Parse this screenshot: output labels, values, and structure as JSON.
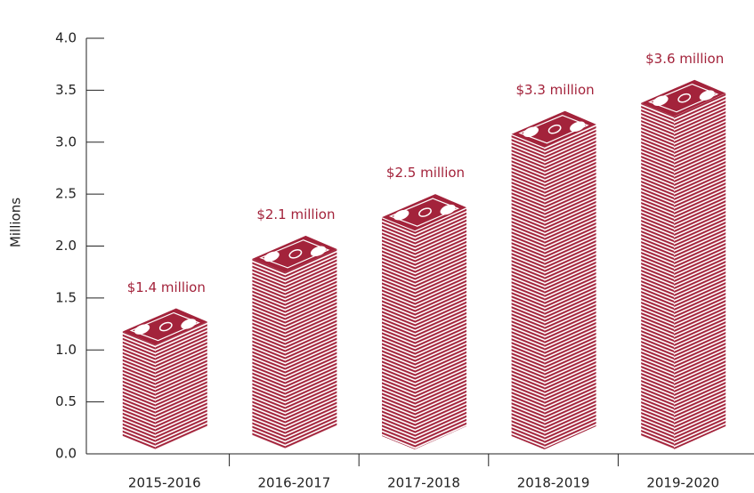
{
  "chart_data": {
    "type": "bar",
    "y_label": "Millions",
    "categories": [
      "2015-2016",
      "2016-2017",
      "2017-2018",
      "2018-2019",
      "2019-2020"
    ],
    "values": [
      1.4,
      2.1,
      2.5,
      3.3,
      3.6
    ],
    "value_labels": [
      "$1.4 million",
      "$2.1 million",
      "$2.5 million",
      "$3.3 million",
      "$3.6 million"
    ],
    "color": "#a3233b",
    "ylim": [
      0,
      4
    ],
    "yticks": [
      {
        "value": 0,
        "label": "0.0"
      },
      {
        "value": 0.5,
        "label": "0.5"
      },
      {
        "value": 1,
        "label": "1.0"
      },
      {
        "value": 1.5,
        "label": "1.5"
      },
      {
        "value": 2,
        "label": "2.0"
      },
      {
        "value": 2.5,
        "label": "2.5"
      },
      {
        "value": 3,
        "label": "3.0"
      },
      {
        "value": 3.5,
        "label": "3.5"
      },
      {
        "value": 4,
        "label": "4.0"
      }
    ]
  }
}
